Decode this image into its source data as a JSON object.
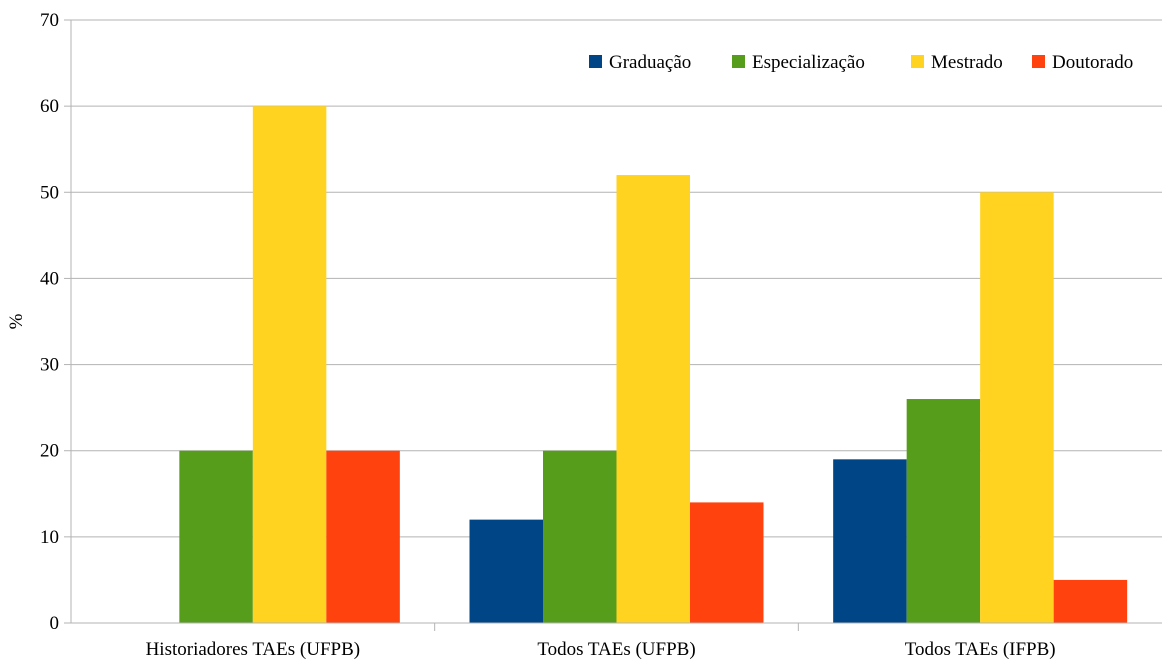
{
  "chart_data": {
    "type": "bar",
    "title": "",
    "xlabel": "",
    "ylabel": "%",
    "ylim": [
      0,
      70
    ],
    "yticks": [
      0,
      10,
      20,
      30,
      40,
      50,
      60,
      70
    ],
    "grid": true,
    "legend_position": "top-right",
    "categories": [
      "Historiadores TAEs (UFPB)",
      "Todos TAEs (UFPB)",
      "Todos TAEs (IFPB)"
    ],
    "series": [
      {
        "name": "Graduação",
        "color": "#004586",
        "values": [
          0,
          12,
          19
        ]
      },
      {
        "name": "Especialização",
        "color": "#579d1c",
        "values": [
          20,
          20,
          26
        ]
      },
      {
        "name": "Mestrado",
        "color": "#ffd320",
        "values": [
          60,
          52,
          50
        ]
      },
      {
        "name": "Doutorado",
        "color": "#ff420e",
        "values": [
          20,
          14,
          5
        ]
      }
    ]
  }
}
